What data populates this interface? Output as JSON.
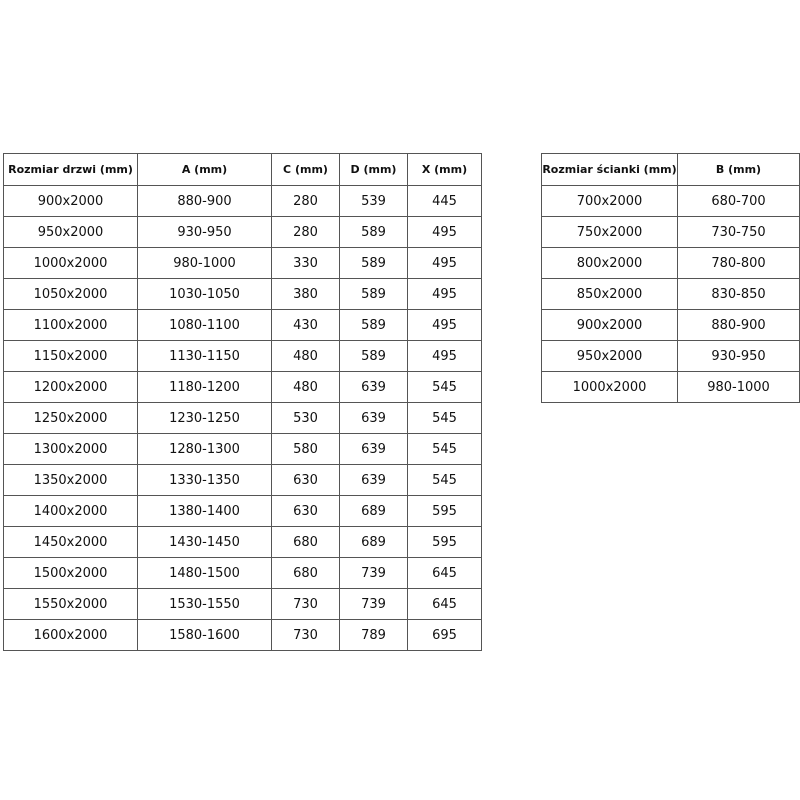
{
  "tables": [
    {
      "header": [
        "Rozmiar drzwi (mm)",
        "A (mm)",
        "C (mm)",
        "D (mm)",
        "X (mm)"
      ],
      "rows": [
        [
          "900x2000",
          "880-900",
          280,
          539,
          445
        ],
        [
          "950x2000",
          "930-950",
          280,
          589,
          495
        ],
        [
          "1000x2000",
          "980-1000",
          330,
          589,
          495
        ],
        [
          "1050x2000",
          "1030-1050",
          380,
          589,
          495
        ],
        [
          "1100x2000",
          "1080-1100",
          430,
          589,
          495
        ],
        [
          "1150x2000",
          "1130-1150",
          480,
          589,
          495
        ],
        [
          "1200x2000",
          "1180-1200",
          480,
          639,
          545
        ],
        [
          "1250x2000",
          "1230-1250",
          530,
          639,
          545
        ],
        [
          "1300x2000",
          "1280-1300",
          580,
          639,
          545
        ],
        [
          "1350x2000",
          "1330-1350",
          630,
          639,
          545
        ],
        [
          "1400x2000",
          "1380-1400",
          630,
          689,
          595
        ],
        [
          "1450x2000",
          "1430-1450",
          680,
          689,
          595
        ],
        [
          "1500x2000",
          "1480-1500",
          680,
          739,
          645
        ],
        [
          "1550x2000",
          "1530-1550",
          730,
          739,
          645
        ],
        [
          "1600x2000",
          "1580-1600",
          730,
          789,
          695
        ]
      ]
    },
    {
      "header": [
        "Rozmiar ścianki (mm)",
        "B (mm)"
      ],
      "rows": [
        [
          "700x2000",
          "680-700"
        ],
        [
          "750x2000",
          "730-750"
        ],
        [
          "800x2000",
          "780-800"
        ],
        [
          "850x2000",
          "830-850"
        ],
        [
          "900x2000",
          "880-900"
        ],
        [
          "950x2000",
          "930-950"
        ],
        [
          "1000x2000",
          "980-1000"
        ]
      ]
    }
  ]
}
